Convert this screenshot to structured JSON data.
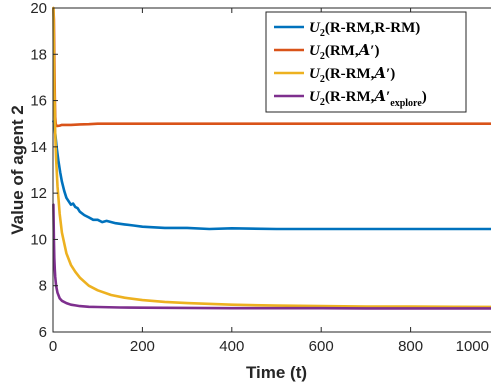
{
  "chart_data": {
    "type": "line",
    "xlabel": "Time (t)",
    "ylabel": "Value of agent 2",
    "xlim": [
      0,
      1000
    ],
    "ylim": [
      6,
      20
    ],
    "xticks": [
      0,
      200,
      400,
      600,
      800,
      1000
    ],
    "yticks": [
      6,
      8,
      10,
      12,
      14,
      16,
      18,
      20
    ],
    "xtick_labels": [
      "0",
      "200",
      "400",
      "600",
      "800",
      "1000"
    ],
    "ytick_labels": [
      "6",
      "8",
      "10",
      "12",
      "14",
      "16",
      "18",
      "20"
    ],
    "grid": false,
    "legend_position": "top-right",
    "series": [
      {
        "name": "U2(R-RM,R-RM)",
        "legend": {
          "base": "U",
          "sub": "2",
          "pre": "(R-RM,R-RM)",
          "post": "",
          "postsub": ""
        },
        "color": "#0072BD",
        "x": [
          1,
          3,
          5,
          8,
          12,
          16,
          20,
          25,
          30,
          35,
          40,
          45,
          50,
          55,
          60,
          70,
          80,
          90,
          100,
          110,
          120,
          140,
          160,
          180,
          200,
          250,
          300,
          350,
          400,
          500,
          600,
          700,
          800,
          900,
          1000
        ],
        "y": [
          15.1,
          15.0,
          14.6,
          14.0,
          13.4,
          12.9,
          12.5,
          12.1,
          11.8,
          11.65,
          11.5,
          11.55,
          11.4,
          11.35,
          11.2,
          11.05,
          10.95,
          10.85,
          10.85,
          10.75,
          10.8,
          10.7,
          10.65,
          10.6,
          10.55,
          10.5,
          10.5,
          10.45,
          10.48,
          10.45,
          10.45,
          10.45,
          10.45,
          10.45,
          10.45
        ]
      },
      {
        "name": "U2(RM,A')",
        "legend": {
          "base": "U",
          "sub": "2",
          "pre": "(RM,",
          "post": "′)",
          "postsub": ""
        },
        "color": "#D95319",
        "x": [
          1,
          2,
          3,
          4,
          5,
          6,
          8,
          10,
          15,
          20,
          40,
          60,
          80,
          100,
          150,
          200,
          300,
          400,
          500,
          600,
          700,
          800,
          900,
          1000
        ],
        "y": [
          20.0,
          19.5,
          18.0,
          16.2,
          15.3,
          15.0,
          14.9,
          14.9,
          14.92,
          14.95,
          14.95,
          14.97,
          14.98,
          15.0,
          15.0,
          15.0,
          15.0,
          15.0,
          15.0,
          15.0,
          15.0,
          15.0,
          15.0,
          15.0
        ]
      },
      {
        "name": "U2(R-RM,A')",
        "legend": {
          "base": "U",
          "sub": "2",
          "pre": "(R-RM,",
          "post": "′)",
          "postsub": ""
        },
        "color": "#EDB120",
        "x": [
          1,
          2,
          3,
          4,
          5,
          7,
          10,
          15,
          20,
          30,
          40,
          50,
          60,
          80,
          100,
          130,
          160,
          200,
          250,
          300,
          400,
          500,
          600,
          700,
          800,
          900,
          1000
        ],
        "y": [
          20.0,
          18.0,
          16.5,
          15.5,
          14.6,
          13.5,
          12.3,
          11.1,
          10.3,
          9.4,
          8.9,
          8.6,
          8.35,
          8.0,
          7.8,
          7.6,
          7.48,
          7.38,
          7.3,
          7.25,
          7.18,
          7.14,
          7.12,
          7.1,
          7.1,
          7.09,
          7.08
        ]
      },
      {
        "name": "U2(R-RM,A'explore)",
        "legend": {
          "base": "U",
          "sub": "2",
          "pre": "(R-RM,",
          "post": "′",
          "postsub": "explore",
          "close": ")"
        },
        "color": "#7E2F8E",
        "x": [
          1,
          2,
          3,
          4,
          5,
          7,
          10,
          15,
          20,
          30,
          40,
          50,
          60,
          80,
          100,
          150,
          200,
          300,
          400,
          500,
          600,
          700,
          800,
          900,
          1000
        ],
        "y": [
          11.5,
          10.0,
          9.2,
          8.7,
          8.4,
          8.0,
          7.7,
          7.45,
          7.35,
          7.25,
          7.18,
          7.15,
          7.12,
          7.09,
          7.08,
          7.06,
          7.05,
          7.04,
          7.03,
          7.03,
          7.03,
          7.02,
          7.02,
          7.02,
          7.02
        ]
      }
    ]
  }
}
